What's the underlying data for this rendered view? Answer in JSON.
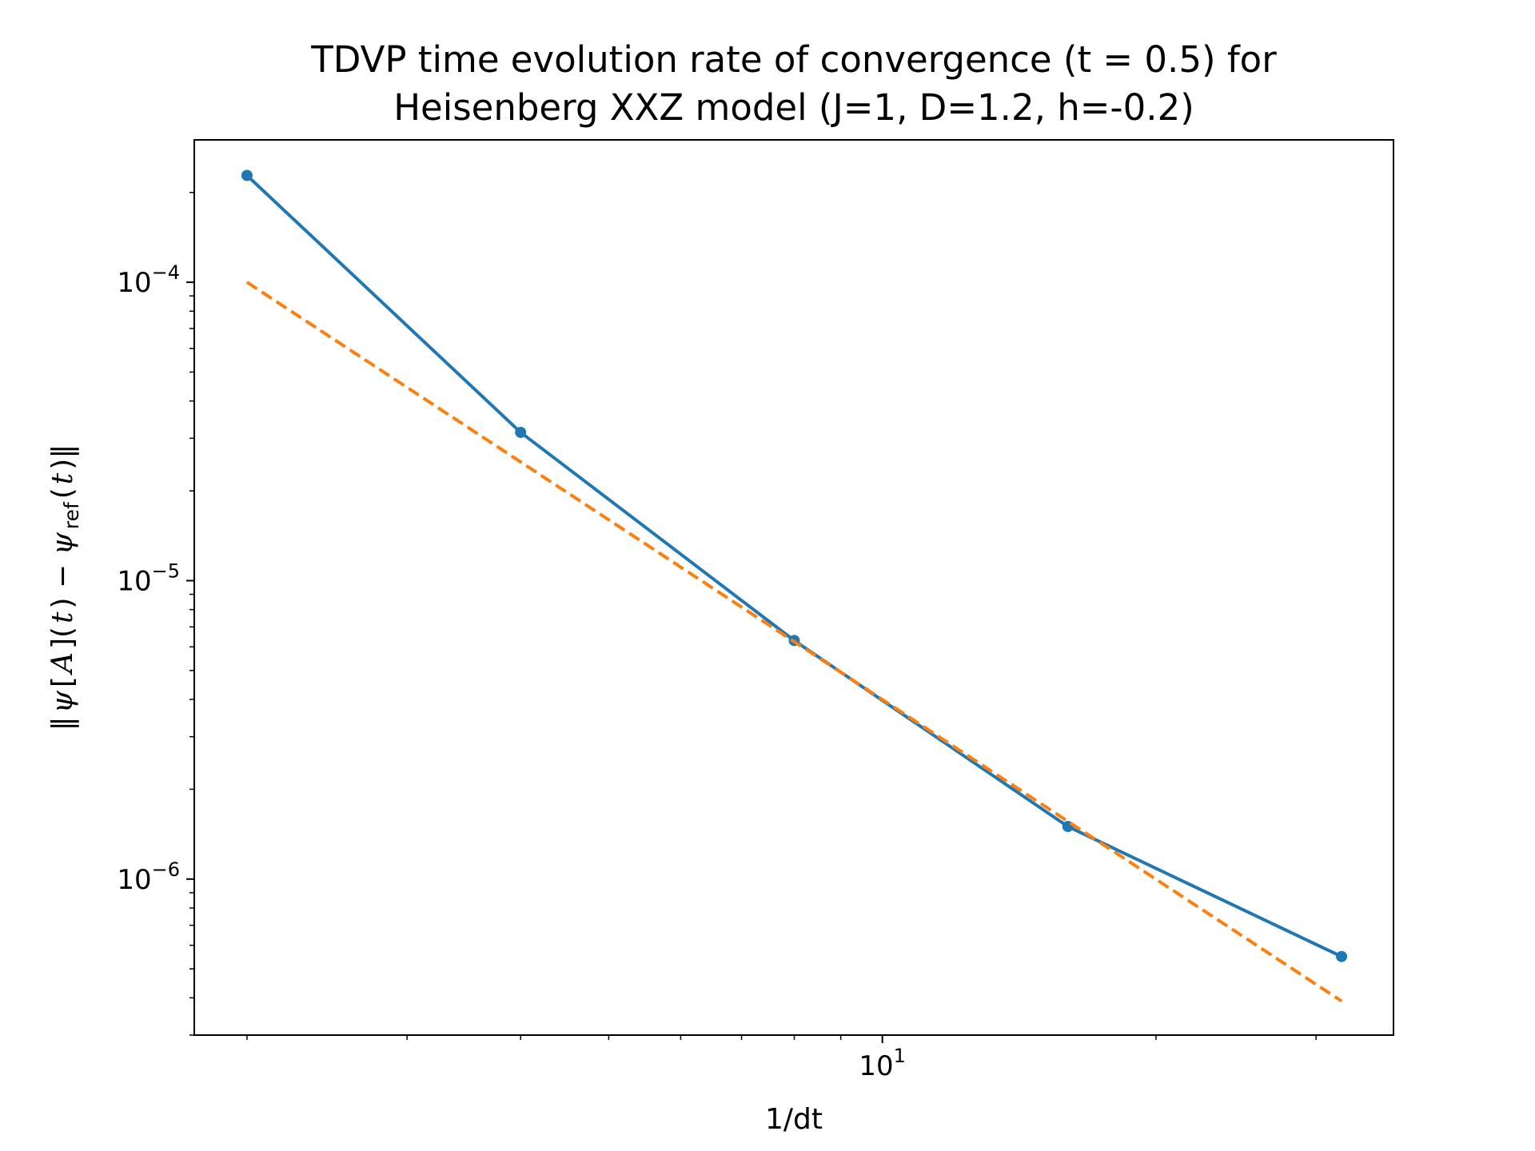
{
  "chart_data": {
    "type": "line",
    "title": [
      "TDVP time evolution rate of convergence (t = 0.5) for",
      "Heisenberg XXZ model (J=1, D=1.2, h=-0.2)"
    ],
    "xlabel": "1/dt",
    "ylabel": {
      "open": "‖",
      "psi": "ψ",
      "bracket_open": "[",
      "A": "A",
      "bracket_close": "](",
      "t1": "t",
      "mid": ") − ",
      "psi2": "ψ",
      "sub": "ref",
      "paren_open": "(",
      "t2": "t",
      "close": ")‖"
    },
    "xscale": "log",
    "yscale": "log",
    "xlim": [
      1.75,
      36.5
    ],
    "ylim": [
      3e-07,
      0.0003
    ],
    "x_ticks": [
      {
        "value": 10,
        "base": "10",
        "exp": "1"
      }
    ],
    "y_ticks": [
      {
        "value": 0.0001,
        "base": "10",
        "exp": "−4"
      },
      {
        "value": 1e-05,
        "base": "10",
        "exp": "−5"
      },
      {
        "value": 1e-06,
        "base": "10",
        "exp": "−6"
      }
    ],
    "grid": false,
    "series": [
      {
        "style": "solid",
        "marker": "circle",
        "color": "#1f77b4",
        "x": [
          2,
          4,
          8,
          16,
          32
        ],
        "y": [
          0.000228,
          3.14e-05,
          6.3e-06,
          1.5e-06,
          5.5e-07
        ]
      },
      {
        "style": "dashed",
        "marker": "none",
        "color": "#ff7f0e",
        "x": [
          2,
          32
        ],
        "y": [
          0.0001,
          3.9e-07
        ]
      }
    ]
  }
}
